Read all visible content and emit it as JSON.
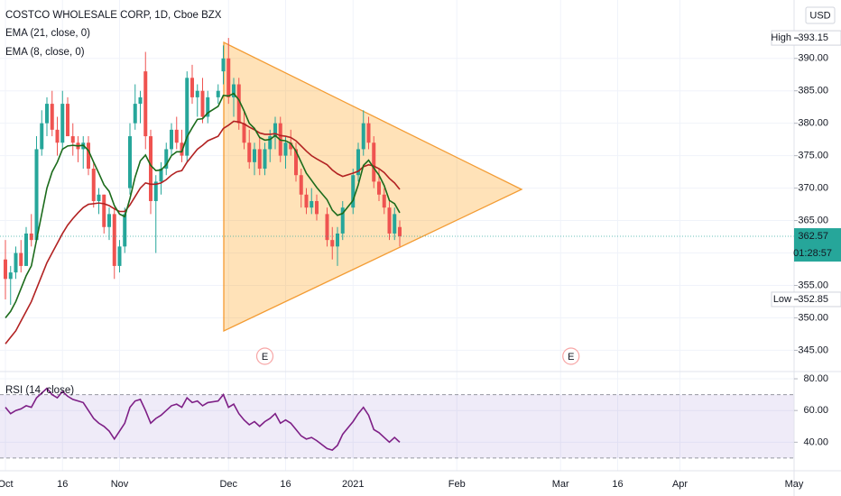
{
  "chart_data": [
    {
      "type": "candlestick",
      "title": "COSTCO WHOLESALE CORP, 1D, Cboe BZX",
      "currency": "USD",
      "dates": [
        "2020-10-01",
        "2020-10-02",
        "2020-10-05",
        "2020-10-06",
        "2020-10-07",
        "2020-10-08",
        "2020-10-09",
        "2020-10-12",
        "2020-10-13",
        "2020-10-14",
        "2020-10-15",
        "2020-10-16",
        "2020-10-19",
        "2020-10-20",
        "2020-10-21",
        "2020-10-22",
        "2020-10-23",
        "2020-10-26",
        "2020-10-27",
        "2020-10-28",
        "2020-10-29",
        "2020-10-30",
        "2020-11-02",
        "2020-11-03",
        "2020-11-04",
        "2020-11-05",
        "2020-11-06",
        "2020-11-09",
        "2020-11-10",
        "2020-11-11",
        "2020-11-12",
        "2020-11-13",
        "2020-11-16",
        "2020-11-17",
        "2020-11-18",
        "2020-11-19",
        "2020-11-20",
        "2020-11-23",
        "2020-11-24",
        "2020-11-25",
        "2020-11-27",
        "2020-11-30",
        "2020-12-01",
        "2020-12-02",
        "2020-12-03",
        "2020-12-04",
        "2020-12-07",
        "2020-12-08",
        "2020-12-09",
        "2020-12-10",
        "2020-12-11",
        "2020-12-14",
        "2020-12-15",
        "2020-12-16",
        "2020-12-17",
        "2020-12-18",
        "2020-12-21",
        "2020-12-22",
        "2020-12-23",
        "2020-12-24",
        "2020-12-28",
        "2020-12-29",
        "2020-12-30",
        "2020-12-31",
        "2021-01-04",
        "2021-01-05",
        "2021-01-06",
        "2021-01-07",
        "2021-01-08",
        "2021-01-11",
        "2021-01-12",
        "2021-01-13",
        "2021-01-14",
        "2021-01-15"
      ],
      "ohlc": [
        [
          359,
          362,
          352.85,
          356
        ],
        [
          356,
          358,
          352,
          357
        ],
        [
          357,
          361,
          356,
          360
        ],
        [
          360,
          362,
          357,
          358
        ],
        [
          358,
          364,
          358,
          363
        ],
        [
          363,
          366,
          361,
          362
        ],
        [
          362,
          378,
          362,
          376
        ],
        [
          376,
          382,
          375,
          380
        ],
        [
          380,
          384,
          378,
          383
        ],
        [
          383,
          385,
          378,
          379
        ],
        [
          379,
          381,
          375,
          377
        ],
        [
          377,
          385,
          376,
          383
        ],
        [
          383,
          384,
          378,
          378
        ],
        [
          378,
          380,
          375,
          377
        ],
        [
          377,
          378,
          374,
          376
        ],
        [
          376,
          378,
          373,
          377
        ],
        [
          377,
          378,
          372,
          373
        ],
        [
          373,
          374,
          367,
          368
        ],
        [
          368,
          370,
          366,
          369
        ],
        [
          369,
          369,
          363,
          364
        ],
        [
          364,
          367,
          362,
          366
        ],
        [
          366,
          367,
          356,
          358
        ],
        [
          358,
          362,
          357,
          361
        ],
        [
          361,
          367,
          360,
          366
        ],
        [
          370,
          380,
          369,
          378
        ],
        [
          380,
          386,
          379,
          383
        ],
        [
          383,
          385,
          380,
          384
        ],
        [
          388,
          391,
          376,
          378
        ],
        [
          378,
          379,
          366,
          368
        ],
        [
          368,
          372,
          360,
          371
        ],
        [
          371,
          374,
          369,
          373
        ],
        [
          373,
          377,
          372,
          376
        ],
        [
          376,
          380,
          375,
          379
        ],
        [
          379,
          381,
          376,
          377
        ],
        [
          377,
          379,
          374,
          375
        ],
        [
          375,
          388,
          374,
          387
        ],
        [
          387,
          389,
          383,
          384
        ],
        [
          384,
          386,
          381,
          385
        ],
        [
          385,
          387,
          380,
          381
        ],
        [
          381,
          385,
          380,
          384
        ],
        [
          384,
          386,
          383,
          385
        ],
        [
          388,
          392,
          386,
          390
        ],
        [
          390,
          393.15,
          383,
          384
        ],
        [
          384,
          387,
          381,
          386
        ],
        [
          386,
          387,
          379,
          380
        ],
        [
          380,
          382,
          376,
          377
        ],
        [
          377,
          379,
          373,
          374
        ],
        [
          374,
          377,
          372,
          376
        ],
        [
          376,
          378,
          372,
          373
        ],
        [
          373,
          377,
          372,
          376
        ],
        [
          376,
          379,
          374,
          378
        ],
        [
          378,
          381,
          376,
          380
        ],
        [
          380,
          381,
          374,
          375
        ],
        [
          375,
          378,
          373,
          377
        ],
        [
          377,
          379,
          375,
          376
        ],
        [
          376,
          377,
          371,
          372
        ],
        [
          372,
          373,
          367,
          369
        ],
        [
          369,
          370,
          366,
          367
        ],
        [
          367,
          370,
          366,
          368
        ],
        [
          368,
          369,
          365,
          366
        ],
        [
          366,
          367,
          361,
          362
        ],
        [
          362,
          364,
          359,
          361
        ],
        [
          361,
          364,
          358,
          363
        ],
        [
          363,
          368,
          362,
          367
        ],
        [
          367,
          373,
          366,
          372
        ],
        [
          372,
          377,
          371,
          376
        ],
        [
          376,
          382,
          375,
          380
        ],
        [
          380,
          381,
          376,
          377
        ],
        [
          377,
          378,
          370,
          371
        ],
        [
          371,
          373,
          368,
          369
        ],
        [
          369,
          370,
          366,
          367
        ],
        [
          367,
          368,
          362,
          363
        ],
        [
          363,
          367,
          362,
          366
        ],
        [
          364,
          365,
          361,
          362.57
        ]
      ],
      "up_color": "#26a69a",
      "down_color": "#ef5350",
      "series": [
        {
          "name": "EMA (21, close, 0)",
          "color": "#b22222",
          "values": [
            346,
            347,
            348,
            349.5,
            351,
            352.5,
            354.5,
            356.5,
            358.5,
            360,
            361.5,
            363,
            364.3,
            365.3,
            366.2,
            367,
            367.5,
            367.6,
            367.7,
            367.6,
            367.3,
            366.8,
            366.4,
            366.4,
            367.4,
            368.7,
            370,
            370.8,
            370.6,
            370.6,
            370.8,
            371.3,
            372,
            372.5,
            372.7,
            374,
            375,
            376,
            376.6,
            377.3,
            378,
            379.2,
            379.7,
            380.3,
            380.2,
            379.9,
            379.4,
            379,
            378.5,
            378.3,
            378.3,
            378.4,
            378.1,
            378,
            377.8,
            377.3,
            376.5,
            375.7,
            375,
            374.5,
            373.6,
            372.8,
            372.2,
            371.8,
            372.3,
            372.6,
            373.3,
            373.6,
            373.4,
            373,
            372.4,
            371.5,
            370.8,
            369.8
          ]
        },
        {
          "name": "EMA (8, close, 0)",
          "color": "#1b6b1b",
          "values": [
            350,
            351,
            352.5,
            354.5,
            356.5,
            358,
            362,
            366,
            370,
            372.5,
            374,
            376,
            376.5,
            376.6,
            376.5,
            376.6,
            375.8,
            374,
            372.3,
            370.5,
            369.5,
            367.3,
            366,
            365.6,
            368.4,
            371.7,
            374.2,
            375.1,
            373.5,
            372.7,
            372.8,
            373.6,
            375,
            375.6,
            375.6,
            377.9,
            379.3,
            380.6,
            380.7,
            381.6,
            382.6,
            384.3,
            384.2,
            384.6,
            383.6,
            381.9,
            380,
            379.2,
            377.8,
            377.4,
            377.5,
            378.1,
            377.4,
            377.3,
            376.9,
            375.7,
            374,
            372.3,
            371.2,
            370.1,
            368.2,
            366.6,
            365.8,
            366.1,
            368.1,
            370.5,
            373.5,
            374.3,
            373.1,
            372,
            370.4,
            368.1,
            367.6,
            366.2
          ]
        }
      ],
      "ylim": [
        342,
        399
      ],
      "yticks": [
        {
          "value": 345,
          "label": "345.00"
        },
        {
          "value": 350,
          "label": "350.00"
        },
        {
          "value": 355,
          "label": "355.00"
        },
        {
          "value": 360,
          "label": "360.00"
        },
        {
          "value": 365,
          "label": "365.00"
        },
        {
          "value": 370,
          "label": "370.00"
        },
        {
          "value": 375,
          "label": "375.00"
        },
        {
          "value": 380,
          "label": "380.00"
        },
        {
          "value": 385,
          "label": "385.00"
        },
        {
          "value": 390,
          "label": "390.00"
        }
      ],
      "xticks": [
        {
          "value": "2020-10-01",
          "label": "Oct"
        },
        {
          "value": "2020-10-16",
          "label": "16"
        },
        {
          "value": "2020-11-02",
          "label": "Nov"
        },
        {
          "value": "2020-12-01",
          "label": "Dec"
        },
        {
          "value": "2020-12-16",
          "label": "16"
        },
        {
          "value": "2021-01-04",
          "label": "2021"
        },
        {
          "value": "2021-02-01",
          "label": "Feb"
        },
        {
          "value": "2021-03-01",
          "label": "Mar"
        },
        {
          "value": "2021-03-16",
          "label": "16"
        },
        {
          "value": "2021-04-01",
          "label": "Apr"
        },
        {
          "value": "2021-05-03",
          "label": "May"
        }
      ],
      "last_price": 362.57,
      "countdown": "01:28:57",
      "high": {
        "label": "High",
        "value": 393.15
      },
      "low": {
        "label": "Low",
        "value": 352.85
      },
      "earnings": [
        {
          "date": "2020-12-10",
          "label": "E"
        },
        {
          "date": "2021-03-03",
          "label": "E"
        }
      ],
      "grid": true
    },
    {
      "type": "line",
      "series": [
        {
          "name": "RSI (14, close)",
          "color": "#7e1f86",
          "values": [
            62,
            58,
            60,
            61,
            63,
            62,
            68,
            71,
            74,
            70,
            68,
            72,
            69,
            67,
            66,
            65,
            60,
            55,
            52,
            50,
            47,
            42,
            47,
            52,
            62,
            66,
            67,
            60,
            52,
            55,
            57,
            60,
            63,
            64,
            62,
            68,
            65,
            66,
            63,
            65,
            66,
            70,
            62,
            64,
            58,
            54,
            51,
            53,
            50,
            53,
            55,
            58,
            52,
            54,
            52,
            48,
            44,
            42,
            43,
            41,
            36,
            35,
            38,
            45,
            53,
            58,
            62,
            57,
            48,
            46,
            43,
            40,
            43,
            40
          ]
        }
      ],
      "ylim": [
        22,
        84
      ],
      "yticks": [
        {
          "value": 40,
          "label": "40.00"
        },
        {
          "value": 60,
          "label": "60.00"
        },
        {
          "value": 80,
          "label": "80.00"
        }
      ],
      "band": [
        30,
        70
      ],
      "grid": true
    }
  ]
}
